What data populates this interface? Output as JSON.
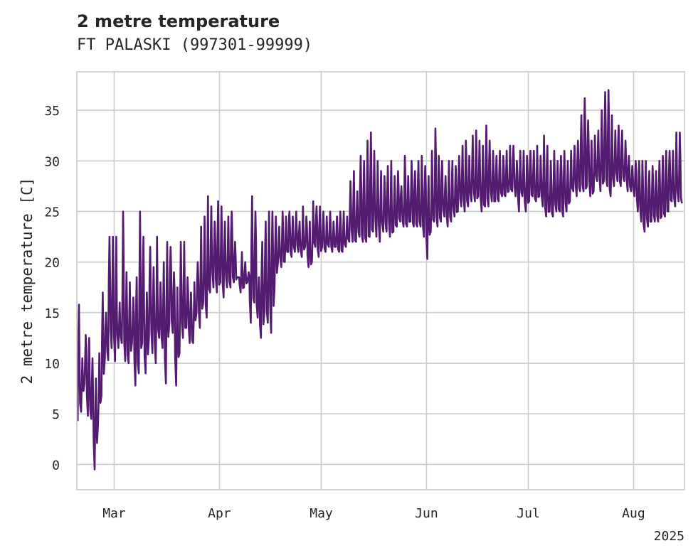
{
  "chart_data": {
    "type": "line",
    "title": "2 metre temperature",
    "subtitle": "FT PALASKI (997301-99999)",
    "ylabel": "2 metre temperature [C]",
    "xlabel": "",
    "year_label": "2025",
    "x_range": [
      "2025-02-18",
      "2025-08-16"
    ],
    "ylim": [
      -2.5,
      38.8
    ],
    "yticks": [
      0,
      5,
      10,
      15,
      20,
      25,
      30,
      35
    ],
    "xticks": [
      {
        "date": "2025-03-01",
        "label": "Mar"
      },
      {
        "date": "2025-04-01",
        "label": "Apr"
      },
      {
        "date": "2025-05-01",
        "label": "May"
      },
      {
        "date": "2025-06-01",
        "label": "Jun"
      },
      {
        "date": "2025-07-01",
        "label": "Jul"
      },
      {
        "date": "2025-08-01",
        "label": "Aug"
      }
    ],
    "grid": true,
    "line_color": "#541c70",
    "series": [
      {
        "x": [
          "2025-02-18",
          "2025-02-19",
          "2025-02-20",
          "2025-02-21",
          "2025-02-22",
          "2025-02-23",
          "2025-02-24",
          "2025-02-25",
          "2025-02-26",
          "2025-02-27",
          "2025-02-28",
          "2025-03-01",
          "2025-03-02",
          "2025-03-03",
          "2025-03-04",
          "2025-03-05",
          "2025-03-06",
          "2025-03-07",
          "2025-03-08",
          "2025-03-09",
          "2025-03-10",
          "2025-03-11",
          "2025-03-12",
          "2025-03-13",
          "2025-03-14",
          "2025-03-15",
          "2025-03-16",
          "2025-03-17",
          "2025-03-18",
          "2025-03-19",
          "2025-03-20",
          "2025-03-21",
          "2025-03-22",
          "2025-03-23",
          "2025-03-24",
          "2025-03-25",
          "2025-03-26",
          "2025-03-27",
          "2025-03-28",
          "2025-03-29",
          "2025-03-30",
          "2025-03-31",
          "2025-04-01",
          "2025-04-02",
          "2025-04-03",
          "2025-04-04",
          "2025-04-05",
          "2025-04-06",
          "2025-04-07",
          "2025-04-08",
          "2025-04-09",
          "2025-04-10",
          "2025-04-11",
          "2025-04-12",
          "2025-04-13",
          "2025-04-14",
          "2025-04-15",
          "2025-04-16",
          "2025-04-17",
          "2025-04-18",
          "2025-04-19",
          "2025-04-20",
          "2025-04-21",
          "2025-04-22",
          "2025-04-23",
          "2025-04-24",
          "2025-04-25",
          "2025-04-26",
          "2025-04-27",
          "2025-04-28",
          "2025-04-29",
          "2025-04-30",
          "2025-05-01",
          "2025-05-02",
          "2025-05-03",
          "2025-05-04",
          "2025-05-05",
          "2025-05-06",
          "2025-05-07",
          "2025-05-08",
          "2025-05-09",
          "2025-05-10",
          "2025-05-11",
          "2025-05-12",
          "2025-05-13",
          "2025-05-14",
          "2025-05-15",
          "2025-05-16",
          "2025-05-17",
          "2025-05-18",
          "2025-05-19",
          "2025-05-20",
          "2025-05-21",
          "2025-05-22",
          "2025-05-23",
          "2025-05-24",
          "2025-05-25",
          "2025-05-26",
          "2025-05-27",
          "2025-05-28",
          "2025-05-29",
          "2025-05-30",
          "2025-05-31",
          "2025-06-01",
          "2025-06-02",
          "2025-06-03",
          "2025-06-04",
          "2025-06-05",
          "2025-06-06",
          "2025-06-07",
          "2025-06-08",
          "2025-06-09",
          "2025-06-10",
          "2025-06-11",
          "2025-06-12",
          "2025-06-13",
          "2025-06-14",
          "2025-06-15",
          "2025-06-16",
          "2025-06-17",
          "2025-06-18",
          "2025-06-19",
          "2025-06-20",
          "2025-06-21",
          "2025-06-22",
          "2025-06-23",
          "2025-06-24",
          "2025-06-25",
          "2025-06-26",
          "2025-06-27",
          "2025-06-28",
          "2025-06-29",
          "2025-06-30",
          "2025-07-01",
          "2025-07-02",
          "2025-07-03",
          "2025-07-04",
          "2025-07-05",
          "2025-07-06",
          "2025-07-07",
          "2025-07-08",
          "2025-07-09",
          "2025-07-10",
          "2025-07-11",
          "2025-07-12",
          "2025-07-13",
          "2025-07-14",
          "2025-07-15",
          "2025-07-16",
          "2025-07-17",
          "2025-07-18",
          "2025-07-19",
          "2025-07-20",
          "2025-07-21",
          "2025-07-22",
          "2025-07-23",
          "2025-07-24",
          "2025-07-25",
          "2025-07-26",
          "2025-07-27",
          "2025-07-28",
          "2025-07-29",
          "2025-07-30",
          "2025-07-31",
          "2025-08-01",
          "2025-08-02",
          "2025-08-03",
          "2025-08-04",
          "2025-08-05",
          "2025-08-06",
          "2025-08-07",
          "2025-08-08",
          "2025-08-09",
          "2025-08-10",
          "2025-08-11",
          "2025-08-12",
          "2025-08-13",
          "2025-08-14",
          "2025-08-15",
          "2025-08-16"
        ],
        "min": [
          4.3,
          5.2,
          8.0,
          4.8,
          4.5,
          -0.5,
          4.0,
          6.8,
          10.5,
          10.3,
          11.5,
          10.2,
          11.5,
          12.0,
          10.2,
          10.0,
          12.0,
          7.8,
          9.0,
          12.0,
          9.0,
          12.5,
          11.0,
          10.0,
          12.5,
          11.5,
          8.0,
          14.0,
          13.0,
          7.8,
          11.0,
          12.5,
          13.5,
          12.0,
          12.0,
          15.0,
          13.5,
          16.0,
          14.5,
          17.0,
          17.5,
          17.0,
          18.0,
          16.5,
          17.5,
          17.5,
          18.0,
          18.5,
          17.0,
          17.5,
          18.0,
          14.0,
          16.0,
          14.5,
          12.5,
          15.0,
          14.0,
          13.0,
          17.5,
          20.0,
          19.5,
          20.0,
          21.0,
          20.5,
          21.0,
          21.0,
          20.5,
          21.5,
          19.5,
          20.0,
          21.5,
          20.5,
          21.5,
          21.0,
          21.5,
          21.0,
          21.5,
          21.0,
          21.0,
          21.5,
          22.0,
          22.0,
          22.0,
          22.5,
          22.0,
          22.0,
          22.5,
          23.0,
          22.5,
          22.0,
          23.0,
          23.0,
          22.5,
          23.0,
          23.5,
          24.0,
          23.5,
          23.5,
          24.0,
          23.5,
          23.5,
          23.5,
          22.5,
          20.3,
          23.0,
          24.0,
          23.5,
          24.0,
          24.5,
          23.5,
          24.0,
          24.5,
          25.0,
          25.5,
          25.0,
          25.5,
          26.0,
          26.0,
          26.5,
          25.0,
          25.5,
          25.5,
          26.0,
          26.0,
          26.0,
          26.5,
          26.5,
          27.0,
          27.0,
          26.5,
          25.0,
          26.5,
          25.0,
          26.0,
          26.5,
          26.0,
          26.5,
          25.5,
          24.5,
          25.0,
          24.5,
          25.0,
          25.0,
          24.5,
          25.0,
          26.0,
          27.0,
          26.5,
          27.0,
          27.0,
          27.5,
          26.5,
          27.0,
          28.0,
          27.0,
          28.0,
          27.5,
          26.5,
          27.5,
          28.0,
          27.5,
          28.0,
          27.0,
          27.0,
          26.5,
          25.0,
          24.0,
          23.0,
          23.5,
          24.0,
          24.0,
          24.0,
          24.5,
          24.5,
          25.0,
          26.0,
          25.5,
          26.0,
          25.8,
          26.0
        ],
        "max": [
          15.8,
          10.5,
          12.8,
          12.5,
          10.5,
          8.5,
          11.0,
          17.0,
          15.0,
          22.5,
          22.5,
          22.5,
          16.0,
          25.0,
          19.0,
          18.0,
          16.5,
          18.5,
          25.0,
          22.5,
          17.0,
          21.5,
          19.5,
          22.5,
          18.0,
          20.0,
          22.0,
          21.5,
          19.0,
          17.5,
          22.0,
          22.0,
          18.5,
          17.0,
          18.0,
          20.0,
          23.5,
          24.5,
          26.5,
          25.5,
          24.0,
          26.0,
          25.5,
          24.0,
          24.5,
          25.0,
          22.0,
          18.5,
          21.0,
          20.0,
          19.0,
          26.5,
          25.0,
          18.5,
          22.0,
          24.0,
          25.0,
          25.0,
          24.5,
          23.5,
          25.0,
          24.5,
          25.0,
          24.5,
          25.0,
          24.0,
          25.5,
          24.5,
          24.0,
          26.0,
          25.5,
          25.5,
          25.0,
          24.5,
          25.0,
          24.0,
          24.5,
          25.0,
          25.0,
          24.5,
          28.0,
          29.0,
          27.0,
          30.5,
          30.0,
          32.0,
          32.8,
          31.0,
          30.0,
          29.0,
          28.5,
          29.5,
          30.0,
          28.5,
          29.0,
          27.5,
          30.5,
          28.5,
          30.0,
          29.0,
          30.0,
          30.5,
          29.5,
          28.5,
          31.0,
          33.2,
          30.5,
          30.0,
          28.5,
          30.0,
          30.0,
          29.5,
          30.5,
          31.5,
          32.0,
          30.5,
          32.5,
          33.0,
          32.0,
          31.5,
          33.5,
          32.0,
          31.0,
          30.5,
          31.0,
          30.5,
          31.0,
          31.5,
          31.5,
          30.0,
          31.0,
          31.0,
          30.5,
          31.0,
          31.0,
          31.5,
          30.5,
          32.5,
          31.5,
          30.0,
          31.0,
          30.0,
          30.5,
          31.0,
          30.0,
          31.0,
          31.5,
          32.0,
          34.5,
          36.2,
          34.0,
          32.0,
          32.5,
          33.0,
          35.0,
          36.8,
          37.0,
          34.5,
          33.0,
          33.5,
          33.0,
          32.0,
          30.5,
          29.5,
          30.0,
          30.0,
          30.0,
          30.0,
          29.0,
          29.5,
          29.0,
          30.0,
          30.5,
          31.0,
          31.0,
          31.0,
          32.8,
          32.8
        ]
      }
    ]
  }
}
